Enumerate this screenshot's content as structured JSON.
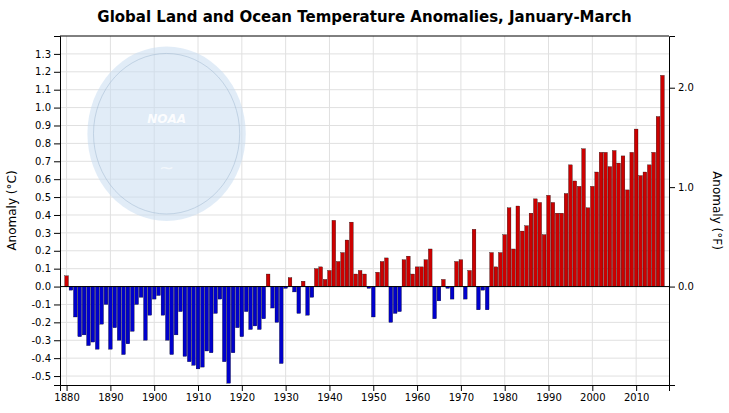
{
  "chart_data": {
    "type": "bar",
    "title": "Global Land and Ocean Temperature Anomalies, January-March",
    "ylabel": "Anomaly (°C)",
    "y2label": "Anomaly (°F)",
    "annotations": [
      "NOAA",
      "~"
    ],
    "x": [
      1880,
      1881,
      1882,
      1883,
      1884,
      1885,
      1886,
      1887,
      1888,
      1889,
      1890,
      1891,
      1892,
      1893,
      1894,
      1895,
      1896,
      1897,
      1898,
      1899,
      1900,
      1901,
      1902,
      1903,
      1904,
      1905,
      1906,
      1907,
      1908,
      1909,
      1910,
      1911,
      1912,
      1913,
      1914,
      1915,
      1916,
      1917,
      1918,
      1919,
      1920,
      1921,
      1922,
      1923,
      1924,
      1925,
      1926,
      1927,
      1928,
      1929,
      1930,
      1931,
      1932,
      1933,
      1934,
      1935,
      1936,
      1937,
      1938,
      1939,
      1940,
      1941,
      1942,
      1943,
      1944,
      1945,
      1946,
      1947,
      1948,
      1949,
      1950,
      1951,
      1952,
      1953,
      1954,
      1955,
      1956,
      1957,
      1958,
      1959,
      1960,
      1961,
      1962,
      1963,
      1964,
      1965,
      1966,
      1967,
      1968,
      1969,
      1970,
      1971,
      1972,
      1973,
      1974,
      1975,
      1976,
      1977,
      1978,
      1979,
      1980,
      1981,
      1982,
      1983,
      1984,
      1985,
      1986,
      1987,
      1988,
      1989,
      1990,
      1991,
      1992,
      1993,
      1994,
      1995,
      1996,
      1997,
      1998,
      1999,
      2000,
      2001,
      2002,
      2003,
      2004,
      2005,
      2006,
      2007,
      2008,
      2009,
      2010,
      2011,
      2012,
      2013,
      2014,
      2015,
      2016
    ],
    "values": [
      0.06,
      -0.02,
      -0.17,
      -0.28,
      -0.27,
      -0.33,
      -0.31,
      -0.35,
      -0.21,
      -0.1,
      -0.35,
      -0.23,
      -0.3,
      -0.38,
      -0.32,
      -0.25,
      -0.1,
      -0.06,
      -0.3,
      -0.16,
      -0.07,
      -0.05,
      -0.16,
      -0.3,
      -0.38,
      -0.27,
      -0.14,
      -0.39,
      -0.42,
      -0.44,
      -0.46,
      -0.45,
      -0.36,
      -0.37,
      -0.15,
      -0.07,
      -0.42,
      -0.54,
      -0.37,
      -0.23,
      -0.28,
      -0.14,
      -0.24,
      -0.22,
      -0.24,
      -0.18,
      0.07,
      -0.12,
      -0.2,
      -0.43,
      -0.01,
      0.05,
      -0.03,
      -0.15,
      0.03,
      -0.16,
      -0.06,
      0.1,
      0.11,
      0.04,
      0.09,
      0.37,
      0.14,
      0.19,
      0.26,
      0.36,
      0.07,
      0.09,
      0.07,
      -0.01,
      -0.17,
      0.08,
      0.14,
      0.16,
      -0.2,
      -0.15,
      -0.14,
      0.15,
      0.17,
      0.07,
      0.11,
      0.11,
      0.15,
      0.21,
      -0.18,
      -0.08,
      0.04,
      -0.01,
      -0.07,
      0.14,
      0.15,
      -0.07,
      0.09,
      0.32,
      -0.13,
      -0.02,
      -0.13,
      0.19,
      0.11,
      0.19,
      0.29,
      0.44,
      0.21,
      0.45,
      0.31,
      0.34,
      0.41,
      0.49,
      0.47,
      0.29,
      0.51,
      0.47,
      0.41,
      0.41,
      0.52,
      0.68,
      0.59,
      0.56,
      0.77,
      0.44,
      0.56,
      0.64,
      0.75,
      0.75,
      0.67,
      0.76,
      0.69,
      0.73,
      0.54,
      0.75,
      0.88,
      0.62,
      0.64,
      0.68,
      0.75,
      0.95,
      1.18
    ],
    "colors": [
      "#cc0000",
      "#0000cc",
      "#0000cc",
      "#0000cc",
      "#0000cc",
      "#0000cc",
      "#0000cc",
      "#0000cc",
      "#0000cc",
      "#0000cc",
      "#0000cc",
      "#0000cc",
      "#0000cc",
      "#0000cc",
      "#0000cc",
      "#0000cc",
      "#0000cc",
      "#0000cc",
      "#0000cc",
      "#0000cc",
      "#0000cc",
      "#0000cc",
      "#0000cc",
      "#0000cc",
      "#0000cc",
      "#0000cc",
      "#0000cc",
      "#0000cc",
      "#0000cc",
      "#0000cc",
      "#0000cc",
      "#0000cc",
      "#0000cc",
      "#0000cc",
      "#0000cc",
      "#0000cc",
      "#0000cc",
      "#0000cc",
      "#0000cc",
      "#0000cc",
      "#0000cc",
      "#0000cc",
      "#0000cc",
      "#0000cc",
      "#0000cc",
      "#0000cc",
      "#cc0000",
      "#0000cc",
      "#0000cc",
      "#0000cc",
      "#0000cc",
      "#cc0000",
      "#0000cc",
      "#0000cc",
      "#cc0000",
      "#0000cc",
      "#0000cc",
      "#cc0000",
      "#cc0000",
      "#cc0000",
      "#cc0000",
      "#cc0000",
      "#cc0000",
      "#cc0000",
      "#cc0000",
      "#cc0000",
      "#cc0000",
      "#cc0000",
      "#cc0000",
      "#0000cc",
      "#0000cc",
      "#cc0000",
      "#cc0000",
      "#cc0000",
      "#0000cc",
      "#0000cc",
      "#0000cc",
      "#cc0000",
      "#cc0000",
      "#cc0000",
      "#cc0000",
      "#cc0000",
      "#cc0000",
      "#cc0000",
      "#0000cc",
      "#0000cc",
      "#cc0000",
      "#0000cc",
      "#0000cc",
      "#cc0000",
      "#cc0000",
      "#0000cc",
      "#cc0000",
      "#cc0000",
      "#0000cc",
      "#0000cc",
      "#0000cc",
      "#cc0000",
      "#cc0000",
      "#cc0000",
      "#cc0000",
      "#cc0000",
      "#cc0000",
      "#cc0000",
      "#cc0000",
      "#cc0000",
      "#cc0000",
      "#cc0000",
      "#cc0000",
      "#cc0000",
      "#cc0000",
      "#cc0000",
      "#cc0000",
      "#cc0000",
      "#cc0000",
      "#cc0000",
      "#cc0000",
      "#cc0000",
      "#cc0000",
      "#cc0000",
      "#cc0000",
      "#cc0000",
      "#cc0000",
      "#cc0000",
      "#cc0000",
      "#cc0000",
      "#cc0000",
      "#cc0000",
      "#cc0000",
      "#cc0000",
      "#cc0000",
      "#cc0000",
      "#cc0000",
      "#cc0000",
      "#cc0000",
      "#cc0000",
      "#cc0000"
    ],
    "xlim": [
      1878.5,
      2017.5
    ],
    "xticks": [
      1880,
      1890,
      1900,
      1910,
      1920,
      1930,
      1940,
      1950,
      1960,
      1970,
      1980,
      1990,
      2000,
      2010
    ],
    "ylim": [
      -0.55,
      1.4
    ],
    "yticks": [
      -0.5,
      -0.4,
      -0.3,
      -0.2,
      -0.1,
      {
        "value": 0,
        "label": "0.0"
      },
      0.1,
      0.2,
      0.3,
      0.4,
      0.5,
      0.6,
      0.7,
      0.8,
      0.9,
      {
        "value": 1,
        "label": "1.0"
      },
      1.1,
      1.2,
      1.3
    ],
    "y2lim": [
      -0.99,
      2.52
    ],
    "y2ticks": [
      {
        "value": 0,
        "label": "0.0"
      },
      {
        "value": 1,
        "label": "1.0"
      },
      {
        "value": 2,
        "label": "2.0"
      }
    ],
    "grid": true
  }
}
